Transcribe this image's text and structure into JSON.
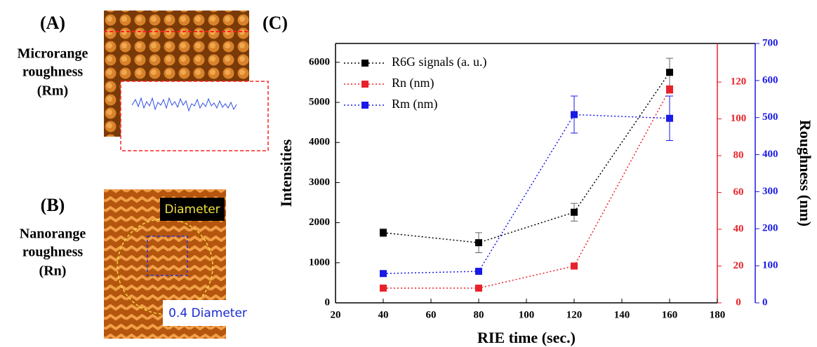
{
  "panel_a": {
    "label": "(A)",
    "caption_line1": "Microrange",
    "caption_line2": "roughness",
    "caption_line3": "(Rm)"
  },
  "panel_b": {
    "label": "(B)",
    "caption_line1": "Nanorange",
    "caption_line2": "roughness",
    "caption_line3": "(Rn)",
    "diameter_label": "Diameter",
    "inner_label": "0.4 Diameter"
  },
  "chart_data": {
    "type": "line",
    "panel_label": "(C)",
    "x_label": "RIE time (sec.)",
    "y_label": "Intensities",
    "y3_label": "Roughness (nm)",
    "x": [
      40,
      80,
      120,
      160
    ],
    "xlim": [
      20,
      180
    ],
    "xticks": [
      20,
      40,
      60,
      80,
      100,
      120,
      140,
      160,
      180
    ],
    "ylim": [
      0,
      6470
    ],
    "yticks": [
      0,
      1000,
      2000,
      3000,
      4000,
      5000,
      6000
    ],
    "y2lim": [
      0,
      141
    ],
    "y2ticks": [
      0,
      20,
      40,
      60,
      80,
      100,
      120
    ],
    "y2color": "#e8222a",
    "y3lim": [
      0,
      700
    ],
    "y3ticks": [
      0,
      100,
      200,
      300,
      400,
      500,
      600,
      700
    ],
    "y3color": "#1a1ae6",
    "series": [
      {
        "name": "R6G signals (a. u.)",
        "color": "#000000",
        "values": [
          1750,
          1500,
          2260,
          5750
        ],
        "errors": [
          100,
          250,
          220,
          350
        ]
      },
      {
        "name": "Rn (nm)",
        "color": "#e8222a",
        "axis": "y2",
        "values": [
          8,
          8,
          20,
          116
        ],
        "errors": [
          1,
          1,
          1.5,
          2
        ]
      },
      {
        "name": "Rm (nm)",
        "color": "#1a1ae6",
        "axis": "y3",
        "values": [
          79,
          85,
          508,
          498
        ],
        "errors": [
          4,
          4,
          50,
          60
        ]
      }
    ]
  }
}
